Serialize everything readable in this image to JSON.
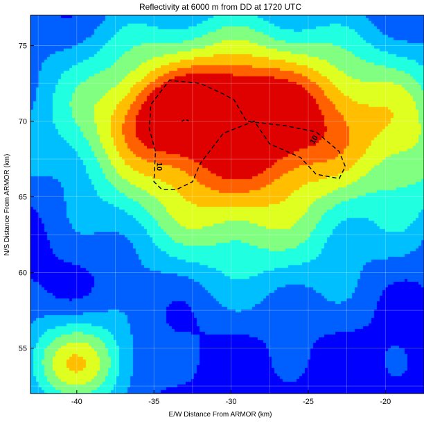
{
  "chart_data": {
    "type": "heatmap",
    "title": "Reflectivity at 6000 m from DD at 1720 UTC",
    "xlabel": "E/W Distance From ARMOR (km)",
    "ylabel": "N/S Distance From ARMOR (km)",
    "xlim": [
      -43,
      -17.5
    ],
    "ylim": [
      52,
      77
    ],
    "x_ticks": [
      -40,
      -35,
      -30,
      -25,
      -20
    ],
    "y_ticks": [
      55,
      60,
      65,
      70,
      75
    ],
    "grid": true,
    "colormap": [
      "#00008f",
      "#0000ff",
      "#005fff",
      "#00bfff",
      "#20ffdf",
      "#80ff80",
      "#dfff20",
      "#ffbf00",
      "#ff6000",
      "#df0000"
    ],
    "blobs": [
      {
        "x": -30,
        "y": 70.5,
        "sx": 7.5,
        "sy": 4.2,
        "amp": 0.78
      },
      {
        "x": -31,
        "y": 71,
        "sx": 2.5,
        "sy": 1.6,
        "amp": 0.22
      },
      {
        "x": -35,
        "y": 70,
        "sx": 2.2,
        "sy": 1.8,
        "amp": 0.18
      },
      {
        "x": -27,
        "y": 69.5,
        "sx": 3.5,
        "sy": 2.5,
        "amp": 0.12
      },
      {
        "x": -32,
        "y": 64,
        "sx": 4.5,
        "sy": 3.5,
        "amp": 0.2
      },
      {
        "x": -40,
        "y": 54,
        "sx": 2.6,
        "sy": 2.2,
        "amp": 0.52
      },
      {
        "x": -26,
        "y": 62,
        "sx": 5,
        "sy": 4,
        "amp": 0.18
      },
      {
        "x": -18,
        "y": 68,
        "sx": 2,
        "sy": 4,
        "amp": 0.22
      },
      {
        "x": -22,
        "y": 70,
        "sx": 3,
        "sy": 3,
        "amp": 0.1
      }
    ],
    "base_level": 0.15,
    "contour": {
      "label": "10",
      "label_positions": [
        {
          "x": -34.8,
          "y": 67
        },
        {
          "x": -24.5,
          "y": 68.7
        }
      ],
      "path": [
        [
          -34.9,
          68.0
        ],
        [
          -35.3,
          69.5
        ],
        [
          -35.2,
          71.1
        ],
        [
          -34.0,
          72.7
        ],
        [
          -32.0,
          72.5
        ],
        [
          -30.5,
          71.8
        ],
        [
          -29.8,
          71.4
        ],
        [
          -29.0,
          70.0
        ],
        [
          -26.5,
          69.7
        ],
        [
          -24.5,
          69.3
        ],
        [
          -23.0,
          68.0
        ],
        [
          -22.6,
          67.0
        ],
        [
          -23.0,
          66.2
        ],
        [
          -24.5,
          66.5
        ],
        [
          -25.5,
          67.6
        ],
        [
          -27.5,
          68.5
        ],
        [
          -28.5,
          70.0
        ],
        [
          -30.5,
          69.2
        ],
        [
          -32.0,
          67.2
        ],
        [
          -32.5,
          66.0
        ],
        [
          -33.5,
          65.5
        ],
        [
          -34.5,
          65.5
        ],
        [
          -35.0,
          66.0
        ],
        [
          -34.9,
          68.0
        ]
      ],
      "hook": [
        [
          -33.2,
          70.0
        ],
        [
          -33.0,
          70.1
        ],
        [
          -32.6,
          70.0
        ]
      ]
    }
  }
}
